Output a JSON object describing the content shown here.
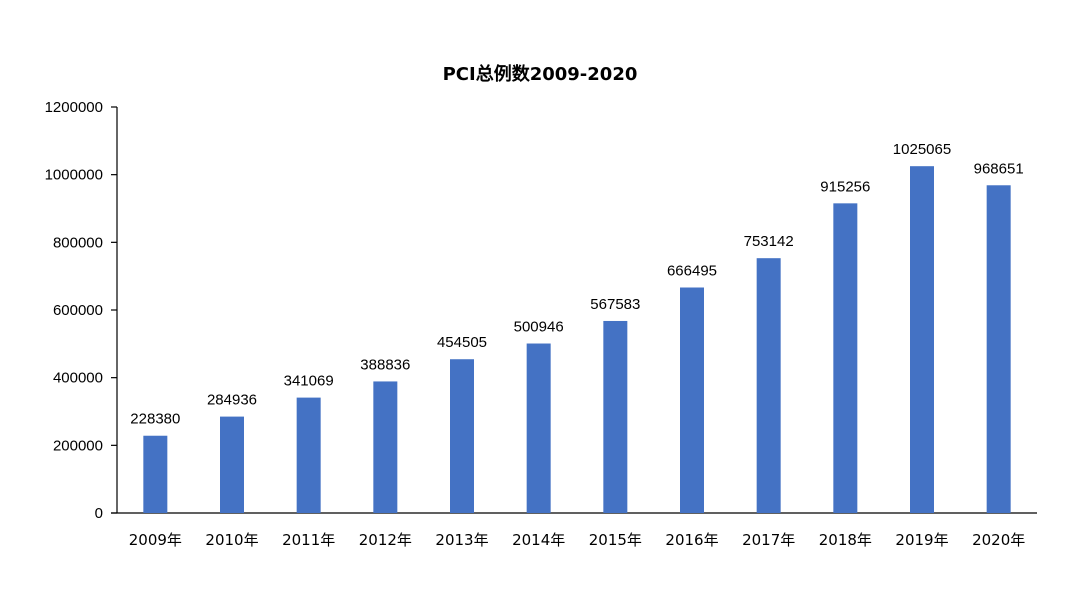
{
  "chart_data": {
    "type": "bar",
    "title": "PCI总例数2009-2020",
    "categories": [
      "2009年",
      "2010年",
      "2011年",
      "2012年",
      "2013年",
      "2014年",
      "2015年",
      "2016年",
      "2017年",
      "2018年",
      "2019年",
      "2020年"
    ],
    "values": [
      228380,
      284936,
      341069,
      388836,
      454505,
      500946,
      567583,
      666495,
      753142,
      915256,
      1025065,
      968651
    ],
    "data_labels": [
      "228380",
      "284936",
      "341069",
      "388836",
      "454505",
      "500946",
      "567583",
      "666495",
      "753142",
      "915256",
      "1025065",
      "968651"
    ],
    "ylim": [
      0,
      1200000
    ],
    "yticks": [
      "0",
      "200000",
      "400000",
      "600000",
      "800000",
      "1000000",
      "1200000"
    ],
    "xlabel": "",
    "ylabel": "",
    "grid": false,
    "legend": "none",
    "bar_color": "#4472C4"
  }
}
